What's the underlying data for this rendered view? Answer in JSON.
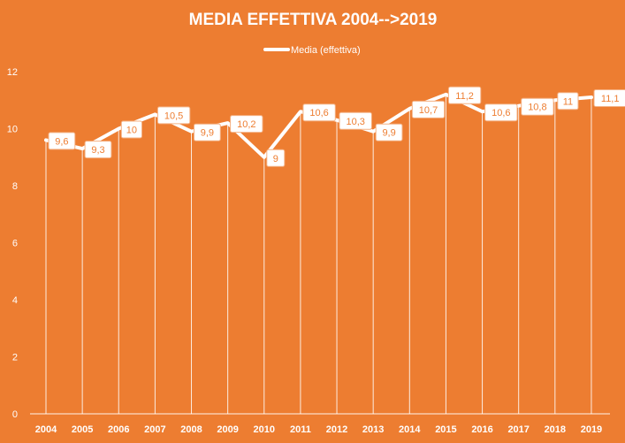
{
  "chart_data": {
    "type": "line",
    "title": "MEDIA  EFFETTIVA  2004-->2019",
    "xlabel": "",
    "ylabel": "",
    "categories": [
      "2004",
      "2005",
      "2006",
      "2007",
      "2008",
      "2009",
      "2010",
      "2011",
      "2012",
      "2013",
      "2014",
      "2015",
      "2016",
      "2017",
      "2018",
      "2019"
    ],
    "series": [
      {
        "name": "Media (effettiva)",
        "values": [
          9.6,
          9.3,
          10,
          10.5,
          9.9,
          10.2,
          9,
          10.6,
          10.3,
          9.9,
          10.7,
          11.2,
          10.6,
          10.8,
          11,
          11.1
        ],
        "data_labels": [
          "9,6",
          "9,3",
          "10",
          "10,5",
          "9,9",
          "10,2",
          "9",
          "10,6",
          "10,3",
          "9,9",
          "10,7",
          "11,2",
          "10,6",
          "10,8",
          "11",
          "11,1"
        ]
      }
    ],
    "ylim": [
      0,
      12
    ],
    "yticks": [
      0,
      2,
      4,
      6,
      8,
      10,
      12
    ],
    "ytick_labels": [
      "0",
      "2",
      "4",
      "6",
      "8",
      "10",
      "12"
    ],
    "legend_position": "top-center",
    "grid": "vertical drop lines per category",
    "colors": {
      "background": "#ED7D31",
      "line": "#FFFFFF",
      "text": "#FFFFFF",
      "label_text": "#ED7D31",
      "label_box": "#FFFFFF"
    }
  }
}
